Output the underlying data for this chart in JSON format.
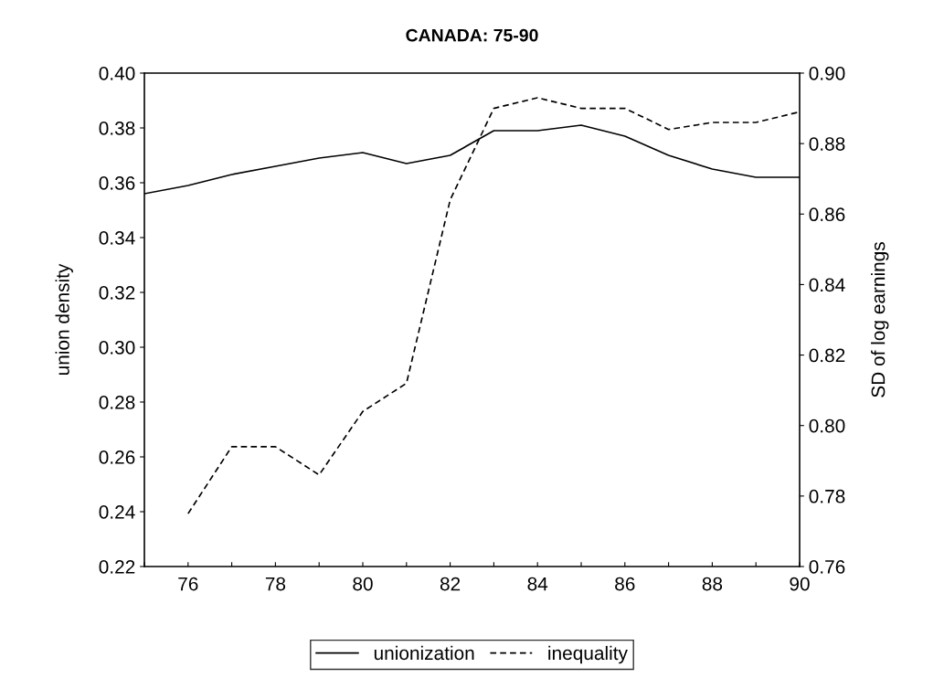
{
  "chart_data": {
    "type": "line",
    "title": "CANADA: 75-90",
    "ylabel": "union density",
    "y2label": "SD of log earnings",
    "x": [
      75,
      76,
      77,
      78,
      79,
      80,
      81,
      82,
      83,
      84,
      85,
      86,
      87,
      88,
      89,
      90
    ],
    "series": [
      {
        "name": "unionization",
        "color": "#000000",
        "line_style": "solid",
        "values": [
          0.356,
          0.359,
          0.363,
          0.366,
          0.369,
          0.371,
          0.367,
          0.37,
          0.379,
          0.379,
          0.381,
          0.377,
          0.37,
          0.365,
          0.362,
          0.362
        ]
      },
      {
        "name": "inequality",
        "color": "#000000",
        "line_style": "dashed",
        "axis": "y2",
        "values": [
          null,
          0.775,
          0.794,
          0.794,
          0.786,
          0.804,
          0.812,
          0.864,
          0.89,
          0.893,
          0.89,
          0.89,
          0.884,
          0.886,
          0.886,
          0.889
        ]
      }
    ],
    "xlim": [
      75,
      90
    ],
    "xticks": [
      {
        "value": 75,
        "label": null
      },
      76,
      {
        "value": 77,
        "label": null
      },
      78,
      {
        "value": 79,
        "label": null
      },
      80,
      {
        "value": 81,
        "label": null
      },
      82,
      {
        "value": 83,
        "label": null
      },
      84,
      {
        "value": 85,
        "label": null
      },
      86,
      {
        "value": 87,
        "label": null
      },
      88,
      {
        "value": 89,
        "label": null
      },
      90
    ],
    "ylim": [
      0.22,
      0.4
    ],
    "yticks": [
      {
        "value": 0.22,
        "label": "0.22"
      },
      {
        "value": 0.24,
        "label": "0.24"
      },
      {
        "value": 0.26,
        "label": "0.26"
      },
      {
        "value": 0.28,
        "label": "0.28"
      },
      {
        "value": 0.3,
        "label": "0.30"
      },
      {
        "value": 0.32,
        "label": "0.32"
      },
      {
        "value": 0.34,
        "label": "0.34"
      },
      {
        "value": 0.36,
        "label": "0.36"
      },
      {
        "value": 0.38,
        "label": "0.38"
      },
      {
        "value": 0.4,
        "label": "0.40"
      }
    ],
    "y2lim": [
      0.76,
      0.9
    ],
    "y2ticks": [
      {
        "value": 0.76,
        "label": "0.76"
      },
      {
        "value": 0.78,
        "label": "0.78"
      },
      {
        "value": 0.8,
        "label": "0.80"
      },
      {
        "value": 0.82,
        "label": "0.82"
      },
      {
        "value": 0.84,
        "label": "0.84"
      },
      {
        "value": 0.86,
        "label": "0.86"
      },
      {
        "value": 0.88,
        "label": "0.88"
      },
      {
        "value": 0.9,
        "label": "0.90"
      }
    ],
    "grid": false,
    "legend": "bottom",
    "marker": "none"
  }
}
